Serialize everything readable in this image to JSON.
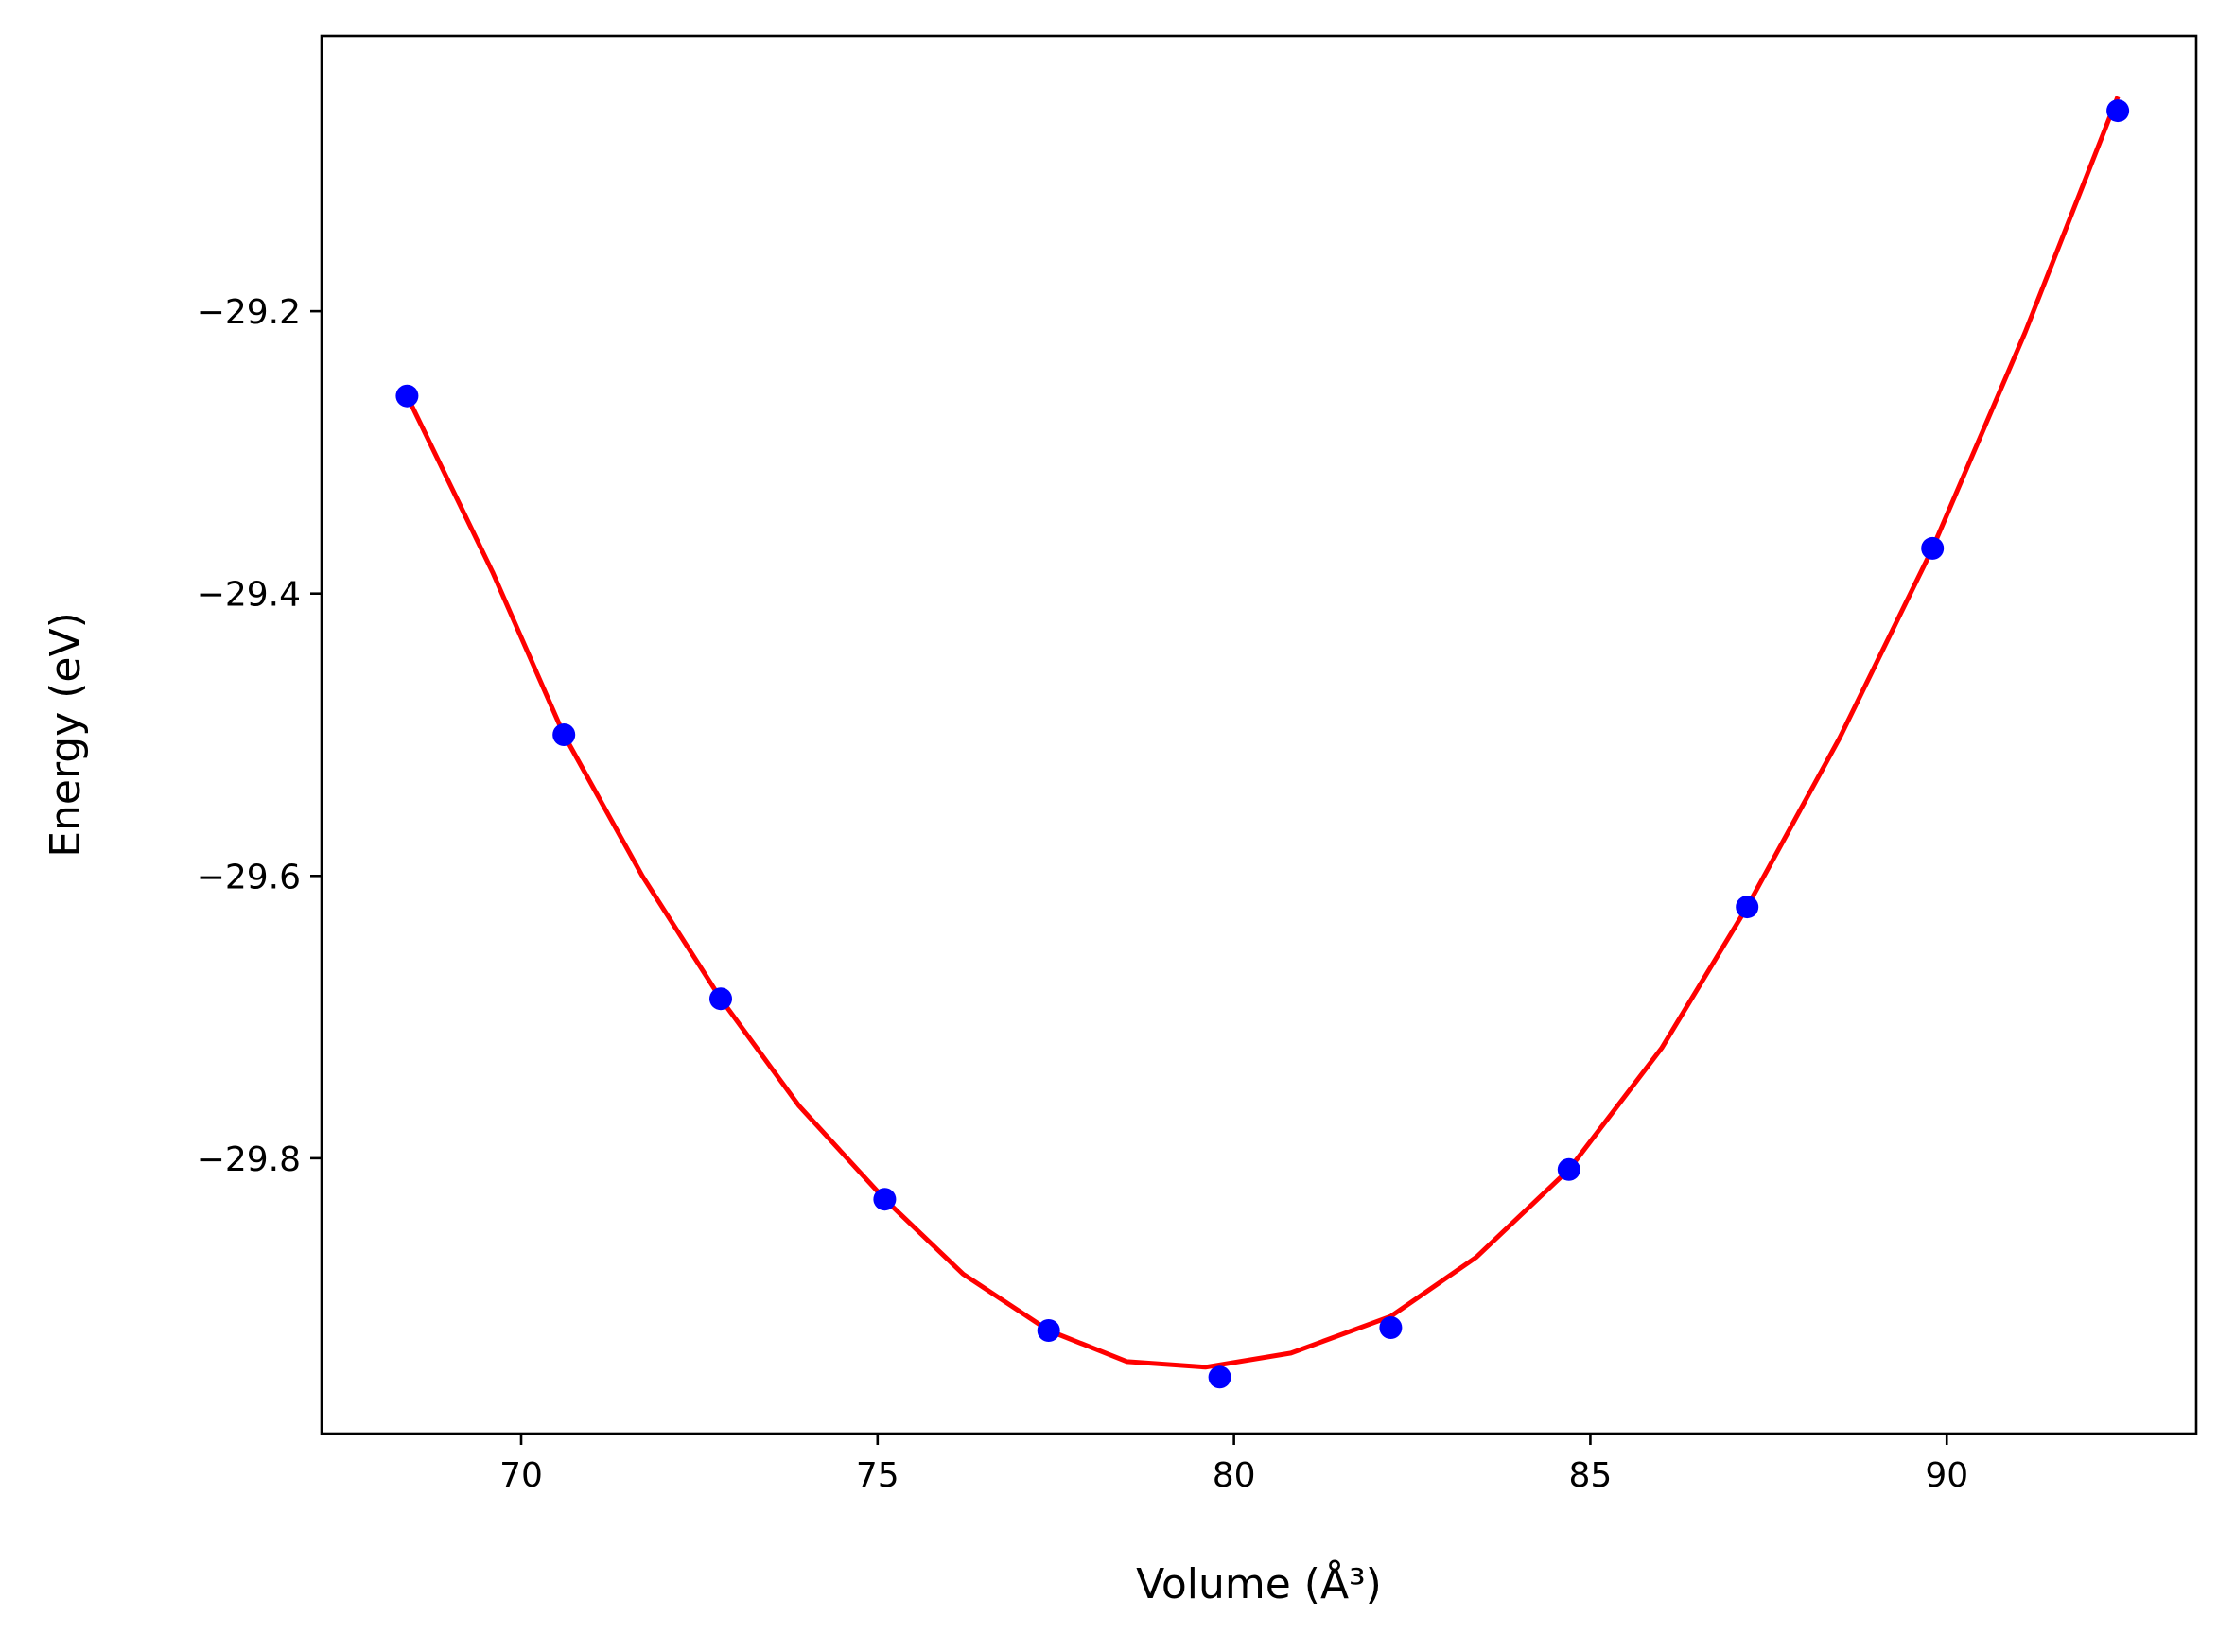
{
  "chart_data": {
    "type": "scatter",
    "xlabel": "Volume (Å³)",
    "ylabel": "Energy (eV)",
    "title": "",
    "xlim": [
      67.2,
      93.5
    ],
    "ylim": [
      -29.995,
      -29.005
    ],
    "x_ticks": [
      70,
      75,
      80,
      85,
      90
    ],
    "y_ticks": [
      -29.2,
      -29.4,
      -29.6,
      -29.8
    ],
    "x_tick_labels": [
      "70",
      "75",
      "80",
      "85",
      "90"
    ],
    "y_tick_labels": [
      "−29.2",
      "−29.4",
      "−29.6",
      "−29.8"
    ],
    "grid": false,
    "series": [
      {
        "kind": "points",
        "color": "#0000ff",
        "x": [
          68.4,
          70.6,
          72.8,
          75.1,
          77.4,
          79.8,
          82.2,
          84.7,
          87.2,
          89.8,
          92.4
        ],
        "y": [
          -29.26,
          -29.5,
          -29.687,
          -29.829,
          -29.922,
          -29.955,
          -29.92,
          -29.808,
          -29.622,
          -29.368,
          -29.058
        ]
      },
      {
        "kind": "fit-line",
        "color": "#ff0000",
        "x": [
          68.4,
          69.6,
          70.6,
          71.7,
          72.8,
          73.9,
          75.1,
          76.2,
          77.4,
          78.5,
          79.6,
          80.8,
          82.2,
          83.4,
          84.7,
          86.0,
          87.2,
          88.5,
          89.8,
          91.1,
          92.4
        ],
        "y": [
          -29.26,
          -29.385,
          -29.5,
          -29.6,
          -29.687,
          -29.763,
          -29.829,
          -29.882,
          -29.922,
          -29.944,
          -29.948,
          -29.938,
          -29.912,
          -29.87,
          -29.808,
          -29.722,
          -29.622,
          -29.502,
          -29.368,
          -29.215,
          -29.048
        ]
      }
    ]
  }
}
